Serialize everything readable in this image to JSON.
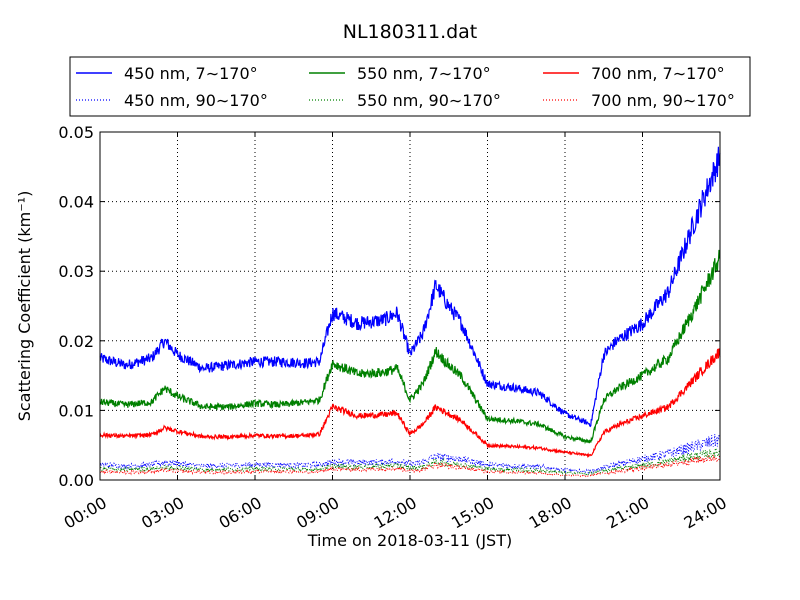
{
  "chart_data": {
    "type": "line",
    "title": "NL180311.dat",
    "xlabel": "Time on 2018-03-11 (JST)",
    "ylabel": "Scattering Coefficient (km⁻¹)",
    "xlim": [
      "00:00",
      "24:00"
    ],
    "ylim": [
      0,
      0.05
    ],
    "grid": true,
    "legend": {
      "placement": "top",
      "columns": 3
    },
    "x_ticks": [
      "00:00",
      "03:00",
      "06:00",
      "09:00",
      "12:00",
      "15:00",
      "18:00",
      "21:00",
      "24:00"
    ],
    "y_ticks": [
      "0.00",
      "0.01",
      "0.02",
      "0.03",
      "0.04",
      "0.05"
    ],
    "x_hours": [
      0,
      1,
      2,
      2.5,
      3,
      4,
      5,
      6,
      7,
      8,
      8.5,
      9,
      10,
      11,
      11.5,
      12,
      12.5,
      13,
      13.5,
      14,
      15,
      16,
      17,
      18,
      19,
      19.5,
      20,
      21,
      22,
      23,
      24
    ],
    "series": [
      {
        "name": "450 nm, 7∼170°",
        "color": "#0000ff",
        "style": "solid",
        "values": [
          0.0175,
          0.0165,
          0.0175,
          0.02,
          0.018,
          0.016,
          0.0165,
          0.017,
          0.017,
          0.0168,
          0.017,
          0.024,
          0.0225,
          0.023,
          0.024,
          0.018,
          0.021,
          0.028,
          0.025,
          0.0225,
          0.0138,
          0.0133,
          0.0125,
          0.0095,
          0.008,
          0.018,
          0.02,
          0.0225,
          0.027,
          0.037,
          0.0465
        ]
      },
      {
        "name": "450 nm, 90∼170°",
        "color": "#0000ff",
        "style": "dotted",
        "values": [
          0.0022,
          0.002,
          0.0022,
          0.0025,
          0.0024,
          0.002,
          0.0021,
          0.0022,
          0.0022,
          0.0021,
          0.0022,
          0.0026,
          0.0025,
          0.0026,
          0.0027,
          0.0023,
          0.0026,
          0.0034,
          0.0032,
          0.003,
          0.0022,
          0.002,
          0.0019,
          0.0014,
          0.0012,
          0.0018,
          0.0022,
          0.003,
          0.0038,
          0.0048,
          0.0058
        ]
      },
      {
        "name": "550 nm, 7∼170°",
        "color": "#008000",
        "style": "solid",
        "values": [
          0.0112,
          0.0108,
          0.0112,
          0.0132,
          0.012,
          0.0105,
          0.0105,
          0.011,
          0.0108,
          0.0112,
          0.0115,
          0.0168,
          0.0152,
          0.0155,
          0.016,
          0.0115,
          0.0138,
          0.0185,
          0.0165,
          0.0148,
          0.0088,
          0.0085,
          0.008,
          0.0062,
          0.0055,
          0.0115,
          0.013,
          0.015,
          0.0175,
          0.0245,
          0.032
        ]
      },
      {
        "name": "550 nm, 90∼170°",
        "color": "#008000",
        "style": "dotted",
        "values": [
          0.0016,
          0.0015,
          0.0016,
          0.0018,
          0.0017,
          0.0015,
          0.0015,
          0.0016,
          0.0016,
          0.0015,
          0.0016,
          0.002,
          0.0019,
          0.002,
          0.0021,
          0.0017,
          0.0019,
          0.0026,
          0.0024,
          0.0022,
          0.0016,
          0.0015,
          0.0014,
          0.001,
          0.0009,
          0.0013,
          0.0016,
          0.0021,
          0.0027,
          0.0034,
          0.004
        ]
      },
      {
        "name": "700 nm, 7∼170°",
        "color": "#ff0000",
        "style": "solid",
        "values": [
          0.0065,
          0.0063,
          0.0065,
          0.0075,
          0.007,
          0.0062,
          0.0062,
          0.0064,
          0.0063,
          0.0064,
          0.0066,
          0.0105,
          0.0092,
          0.0094,
          0.0096,
          0.0066,
          0.008,
          0.0105,
          0.0095,
          0.0085,
          0.005,
          0.0048,
          0.0046,
          0.004,
          0.0035,
          0.0068,
          0.0078,
          0.0092,
          0.0105,
          0.0145,
          0.0185
        ]
      },
      {
        "name": "700 nm, 90∼170°",
        "color": "#ff0000",
        "style": "dotted",
        "values": [
          0.0012,
          0.0011,
          0.0012,
          0.0014,
          0.0013,
          0.0011,
          0.0011,
          0.0012,
          0.0012,
          0.0011,
          0.0012,
          0.0016,
          0.0015,
          0.0016,
          0.0017,
          0.0013,
          0.0015,
          0.0022,
          0.002,
          0.0018,
          0.0012,
          0.0011,
          0.001,
          0.0007,
          0.0006,
          0.001,
          0.0012,
          0.0017,
          0.0022,
          0.0028,
          0.0033
        ]
      }
    ]
  }
}
